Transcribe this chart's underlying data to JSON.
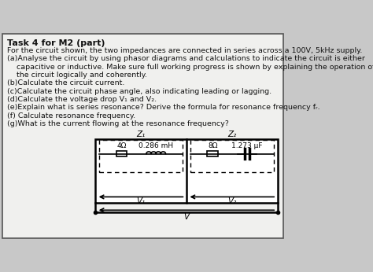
{
  "title": "Task 4 for M2 (part)",
  "intro": "For the circuit shown, the two impedances are connected in series across a 100V, 5kHz supply.",
  "q_a1": "(a)Analyse the circuit by using phasor diagrams and calculations to indicate the circuit is either",
  "q_a2": "    capacitive or inductive. Make sure full working progress is shown by explaining the operation of",
  "q_a3": "    the circuit logically and coherently.",
  "q_b": "(b)Calculate the circuit current.",
  "q_c": "(c)Calculate the circuit phase angle, also indicating leading or lagging.",
  "q_d": "(d)Calculate the voltage drop V₁ and V₂.",
  "q_e": "(e)Explain what is series resonance? Derive the formula for resonance frequency fᵣ.",
  "q_f": "(f) Calculate resonance frequency.",
  "q_g": "(g)What is the current flowing at the resonance frequency?",
  "z1_label": "Z₁",
  "z2_label": "Z₂",
  "r1_label": "4Ω",
  "l1_label": "0.286 mH",
  "r2_label": "8Ω",
  "c2_label": "1.273 μF",
  "v1_label": "V₁",
  "v2_label": "V₂",
  "v_label": "V",
  "outer_bg": "#c8c8c8",
  "inner_bg": "#f0f0ee",
  "text_color": "#111111"
}
